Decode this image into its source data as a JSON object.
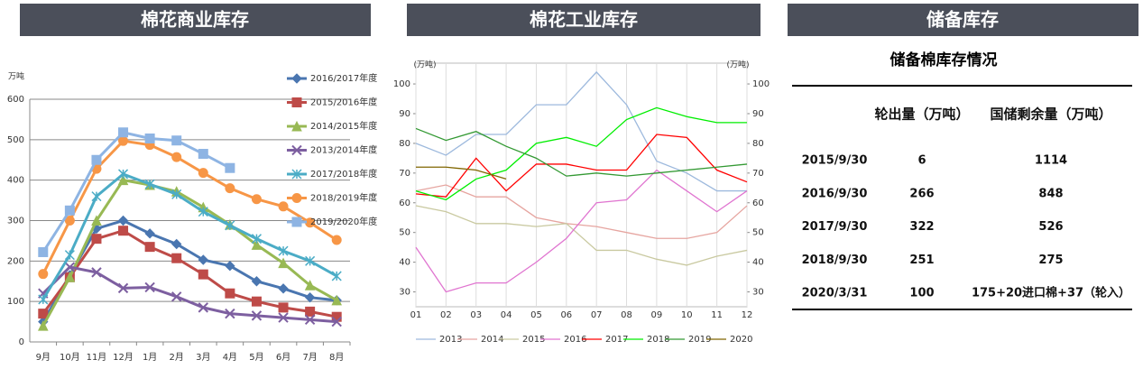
{
  "chart_data": [
    {
      "type": "line",
      "title": "棉花商业库存",
      "y_label": "万吨",
      "categories": [
        "9月",
        "10月",
        "11月",
        "12月",
        "1月",
        "2月",
        "3月",
        "4月",
        "5月",
        "6月",
        "7月",
        "8月"
      ],
      "ylim": [
        0,
        600
      ],
      "yticks": [
        0,
        100,
        200,
        300,
        400,
        500,
        600
      ],
      "grid": "y",
      "legend": "right",
      "series": [
        {
          "name": "2016/2017年度",
          "color": "#4a76b0",
          "marker": "diamond",
          "values": [
            50,
            165,
            280,
            300,
            268,
            242,
            203,
            188,
            150,
            132,
            110,
            103
          ]
        },
        {
          "name": "2015/2016年度",
          "color": "#be4b48",
          "marker": "square",
          "values": [
            70,
            160,
            255,
            275,
            235,
            207,
            167,
            120,
            100,
            85,
            75,
            62
          ]
        },
        {
          "name": "2014/2015年度",
          "color": "#98b954",
          "marker": "triangle",
          "values": [
            40,
            160,
            300,
            400,
            388,
            372,
            333,
            290,
            240,
            195,
            140,
            103
          ]
        },
        {
          "name": "2013/2014年度",
          "color": "#7d5fa0",
          "marker": "x",
          "values": [
            120,
            185,
            172,
            133,
            135,
            112,
            85,
            70,
            65,
            60,
            55,
            50
          ]
        },
        {
          "name": "2017/2018年度",
          "color": "#4bacc6",
          "marker": "star",
          "values": [
            105,
            215,
            360,
            415,
            390,
            365,
            322,
            288,
            255,
            225,
            200,
            163
          ]
        },
        {
          "name": "2018/2019年度",
          "color": "#f79646",
          "marker": "circle",
          "values": [
            168,
            300,
            428,
            497,
            487,
            457,
            418,
            380,
            353,
            335,
            295,
            252
          ]
        },
        {
          "name": "2019/2020年度",
          "color": "#8eb4e3",
          "marker": "square",
          "values": [
            222,
            325,
            450,
            518,
            503,
            498,
            465,
            430,
            null,
            null,
            null,
            null
          ]
        }
      ]
    },
    {
      "type": "line",
      "title": "棉花工业库存",
      "y_label": "(万吨)",
      "y2_label": "(万吨)",
      "categories": [
        "01",
        "02",
        "03",
        "04",
        "05",
        "06",
        "07",
        "08",
        "09",
        "10",
        "11",
        "12"
      ],
      "ylim": [
        25,
        107
      ],
      "yticks": [
        30,
        40,
        50,
        60,
        70,
        80,
        90,
        100
      ],
      "y2lim": [
        25,
        107
      ],
      "y2ticks": [
        30,
        40,
        50,
        60,
        70,
        80,
        90,
        100
      ],
      "grid": "x",
      "legend": "bottom",
      "series": [
        {
          "name": "2013",
          "color": "#9db9dd",
          "values": [
            80,
            76,
            83,
            83,
            93,
            93,
            104,
            93,
            74,
            70,
            64,
            64
          ]
        },
        {
          "name": "2014",
          "color": "#e6a5a0",
          "values": [
            64,
            66,
            62,
            62,
            55,
            53,
            52,
            50,
            48,
            48,
            50,
            59
          ]
        },
        {
          "name": "2015",
          "color": "#c9c9a0",
          "values": [
            59,
            57,
            53,
            53,
            52,
            53,
            44,
            44,
            41,
            39,
            42,
            44
          ]
        },
        {
          "name": "2016",
          "color": "#e075d0",
          "values": [
            45,
            30,
            33,
            33,
            40,
            48,
            60,
            61,
            71,
            64,
            57,
            64
          ]
        },
        {
          "name": "2017",
          "color": "#ff0000",
          "values": [
            63,
            62,
            75,
            64,
            73,
            73,
            71,
            71,
            83,
            82,
            71,
            67
          ]
        },
        {
          "name": "2018",
          "color": "#00ee00",
          "values": [
            64,
            61,
            68,
            71,
            80,
            82,
            79,
            88,
            92,
            89,
            87,
            87
          ]
        },
        {
          "name": "2019",
          "color": "#339933",
          "values": [
            85,
            81,
            84,
            79,
            75,
            69,
            70,
            69,
            70,
            71,
            72,
            73
          ]
        },
        {
          "name": "2020",
          "color": "#806600",
          "values": [
            72,
            72,
            71,
            68,
            null,
            null,
            null,
            null,
            null,
            null,
            null,
            null
          ]
        }
      ]
    }
  ],
  "table": {
    "header": "储备库存",
    "title": "储备棉库存情况",
    "columns": [
      "轮出量（万吨）",
      "国储剩余量（万吨）"
    ],
    "rows": [
      [
        "2015/9/30",
        "6",
        "1114"
      ],
      [
        "2016/9/30",
        "266",
        "848"
      ],
      [
        "2017/9/30",
        "322",
        "526"
      ],
      [
        "2018/9/30",
        "251",
        "275"
      ],
      [
        "2020/3/31",
        "100",
        "175+20进口棉+37（轮入）"
      ]
    ]
  }
}
